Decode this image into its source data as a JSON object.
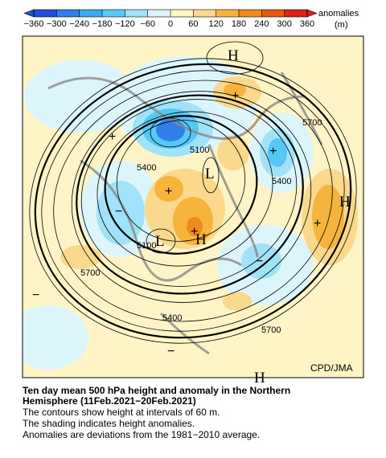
{
  "colorbar": {
    "label": "anomalies",
    "unit": "(m)",
    "ticks": [
      {
        "value": -360,
        "label": "−360"
      },
      {
        "value": -300,
        "label": "−300"
      },
      {
        "value": -240,
        "label": "−240"
      },
      {
        "value": -180,
        "label": "−180"
      },
      {
        "value": -120,
        "label": "−120"
      },
      {
        "value": -60,
        "label": "−60"
      },
      0,
      60,
      120,
      180,
      240,
      300,
      360
    ],
    "colors": [
      "#1f4fd8",
      "#2f7fe8",
      "#3ba8f0",
      "#55c8f5",
      "#a0e2f7",
      "#dcf5fb",
      "#fff4c6",
      "#fad88c",
      "#f6b43c",
      "#f08a1c",
      "#e85a12",
      "#e02012"
    ]
  },
  "map": {
    "contour_labels": [
      "5700",
      "5700",
      "5700",
      "5400",
      "5400",
      "5400",
      "5100",
      "5100"
    ],
    "highs": [
      "H",
      "H",
      "H",
      "H"
    ],
    "lows": [
      "L",
      "L"
    ],
    "credit": "CPD/JMA"
  },
  "caption": {
    "title_lines": [
      "Ten day mean 500 hPa height and anomaly in the Northern",
      "Hemisphere (11Feb.2021−20Feb.2021)"
    ],
    "notes": [
      "The contours show height at intervals of 60 m.",
      "The shading indicates height anomalies.",
      "Anomalies are deviations from the 1981−2010 average."
    ]
  }
}
